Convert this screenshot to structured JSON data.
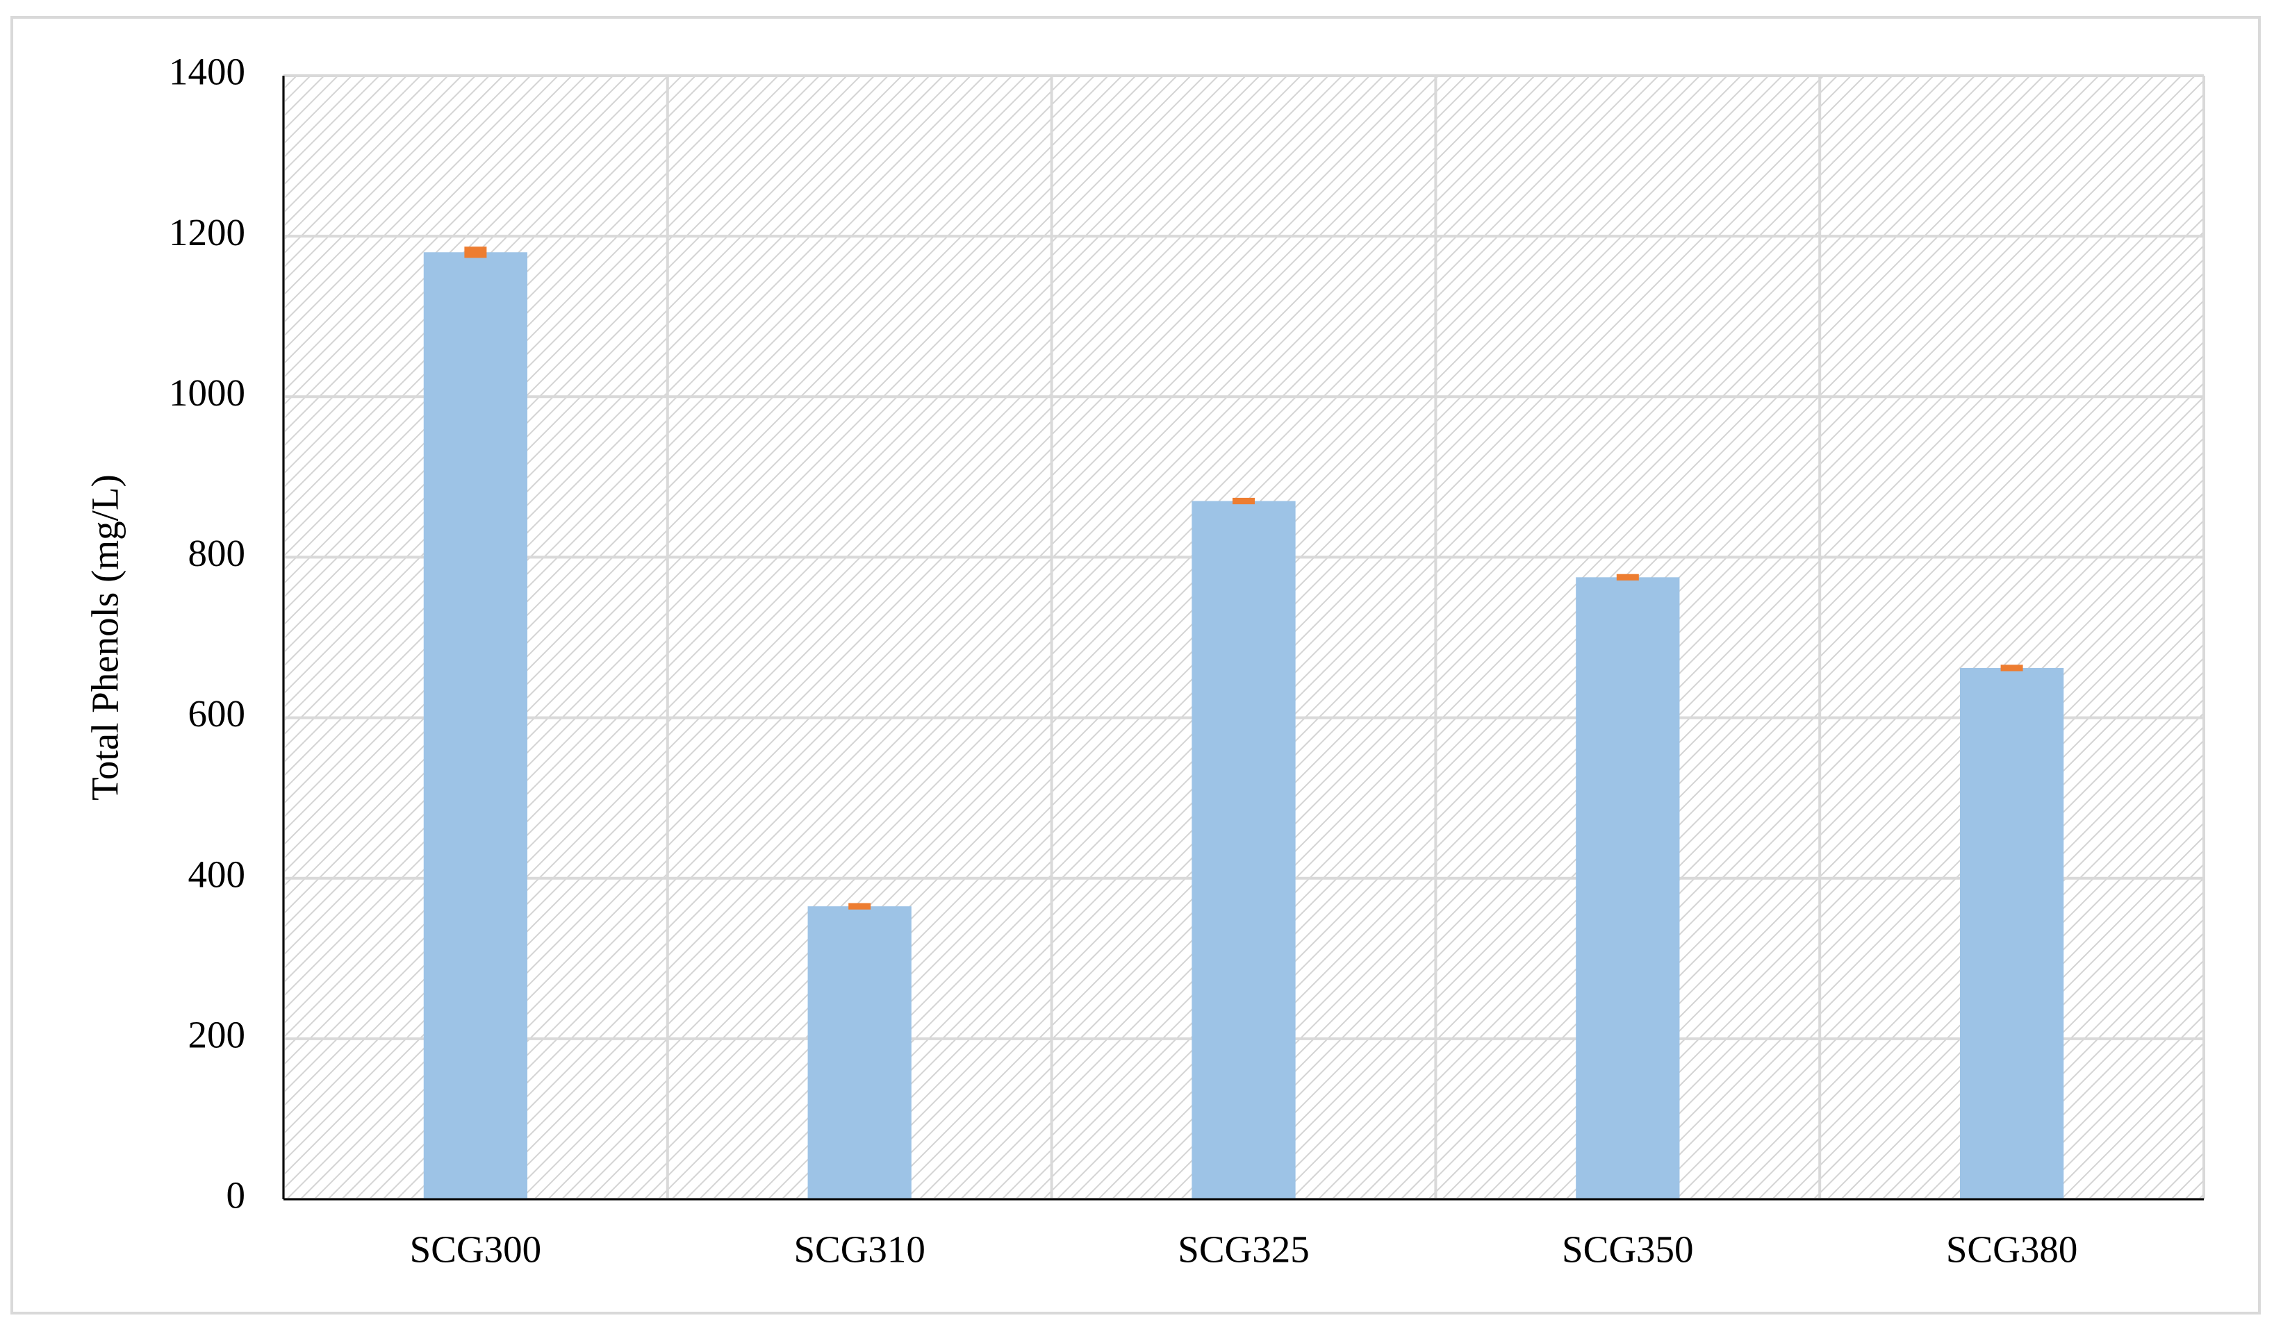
{
  "chart_data": {
    "type": "bar",
    "y_label": "Total Phenols (mg/L)",
    "categories": [
      "SCG300",
      "SCG310",
      "SCG325",
      "SCG350",
      "SCG380"
    ],
    "values": [
      1180,
      365,
      870,
      775,
      662
    ],
    "errors": [
      7,
      4,
      4,
      4,
      4
    ],
    "color": "#9dc3e6",
    "error_color": "#ed7d31",
    "ylim": [
      0,
      1400
    ],
    "yticks": [
      0,
      200,
      400,
      600,
      800,
      1000,
      1200,
      1400
    ],
    "grid": true
  }
}
